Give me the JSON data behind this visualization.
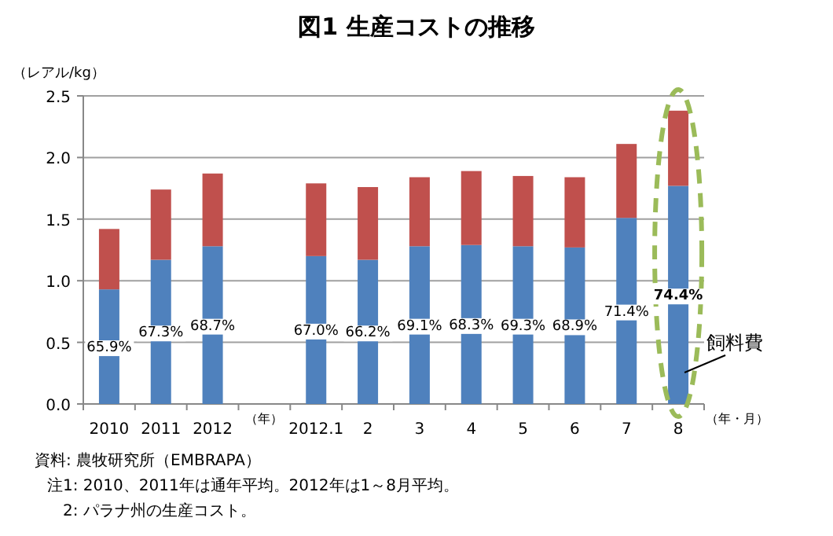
{
  "chart_data": {
    "type": "bar",
    "stacked": true,
    "title": "図1  生産コストの推移",
    "ylabel": "（レアル/kg）",
    "xlabel": "（年・月）",
    "categories": [
      "2010",
      "2011",
      "2012",
      null,
      "2012.1",
      "2",
      "3",
      "4",
      "5",
      "6",
      "7",
      "8"
    ],
    "series": [
      {
        "name": "飼料費",
        "color": "#4f81bd",
        "values": [
          0.93,
          1.17,
          1.28,
          null,
          1.2,
          1.17,
          1.28,
          1.29,
          1.28,
          1.27,
          1.51,
          1.77
        ]
      },
      {
        "color": "#c0504d",
        "values": [
          0.49,
          0.57,
          0.59,
          null,
          0.59,
          0.59,
          0.56,
          0.6,
          0.57,
          0.57,
          0.6,
          0.61
        ]
      }
    ],
    "ylim": [
      0,
      2.5
    ],
    "yticks": [
      {
        "value": 0,
        "label": "0.0"
      },
      {
        "value": 0.5,
        "label": "0.5"
      },
      {
        "value": 1,
        "label": "1.0"
      },
      {
        "value": 1.5,
        "label": "1.5"
      },
      {
        "value": 2,
        "label": "2.0"
      },
      {
        "value": 2.5,
        "label": "2.5"
      }
    ],
    "grid": "y",
    "legend": false,
    "annotations": [
      "（年）",
      "資料: 農牧研究所（EMBRAPA）",
      "注1: 2010、2011年は通年平均。2012年は1～8月平均。",
      "2: パラナ州の生産コスト。",
      "65.9%",
      "67.3%",
      "68.7%",
      "67.0%",
      "66.2%",
      "69.1%",
      "68.3%",
      "69.3%",
      "68.9%",
      "71.4%",
      "74.4%"
    ]
  }
}
